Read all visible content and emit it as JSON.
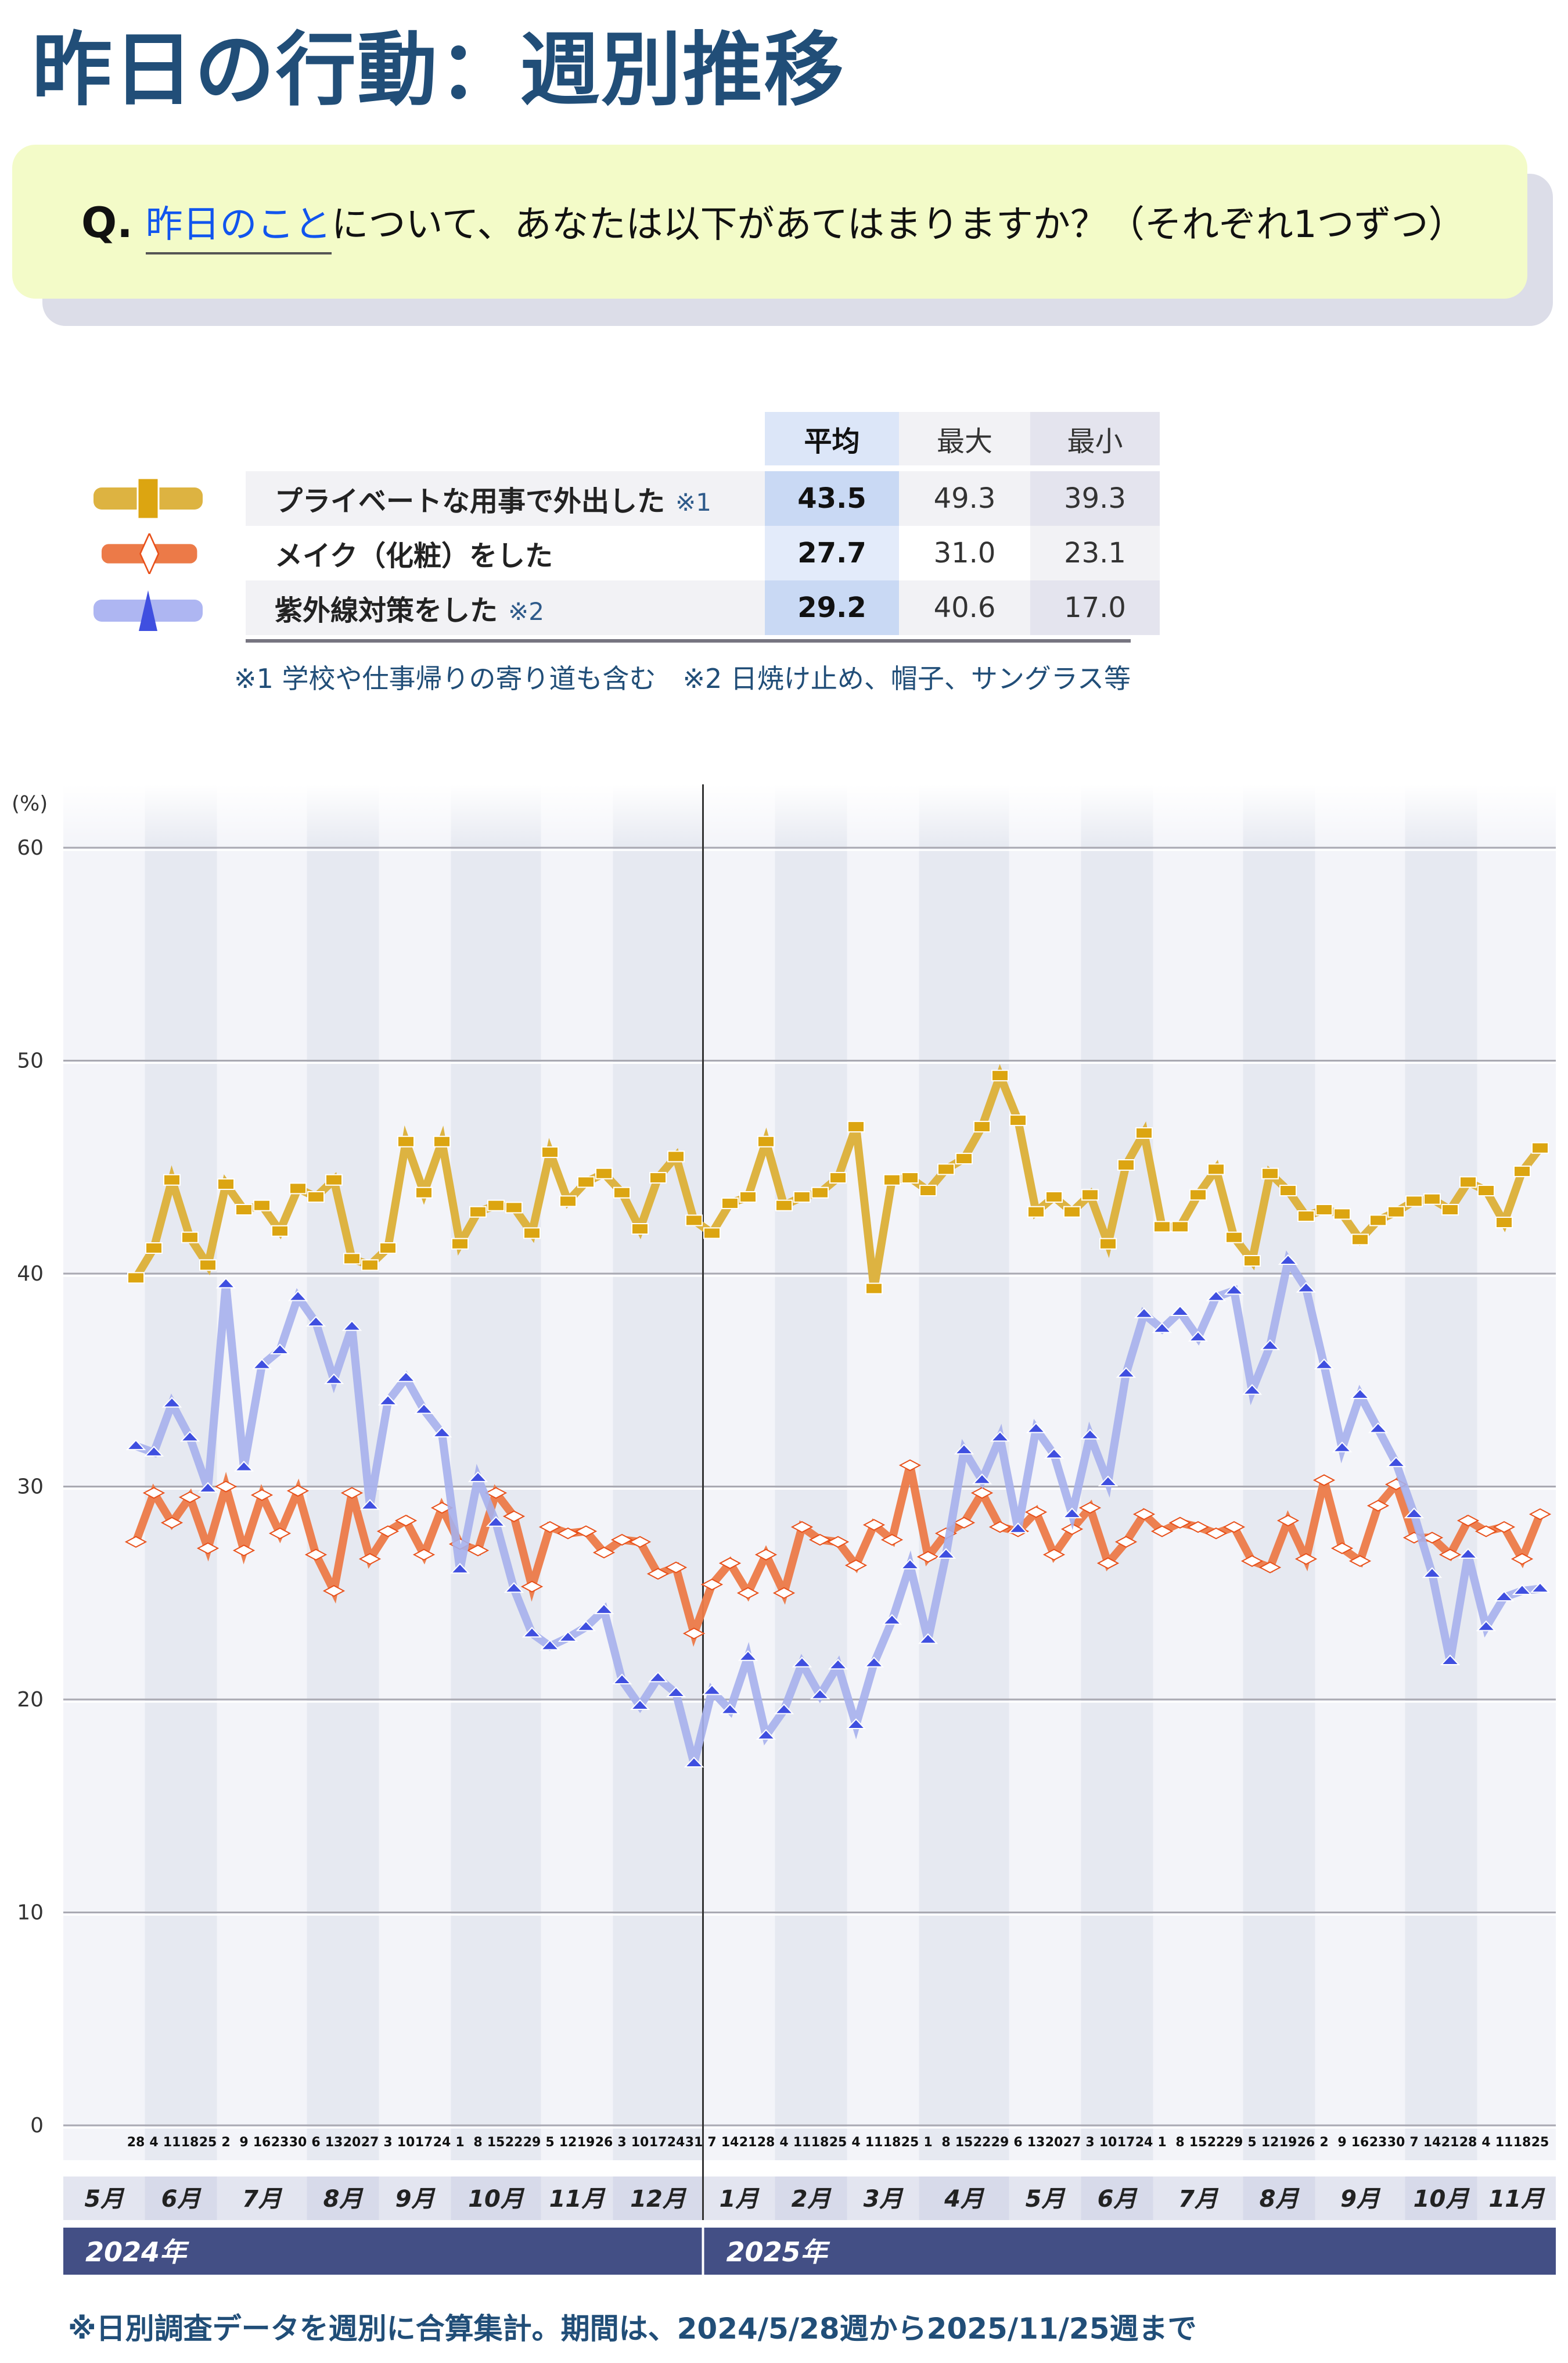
{
  "title": "昨日の行動：週別推移",
  "question": {
    "mark": "Q.",
    "highlight": "昨日のこと",
    "text": "について、あなたは以下があてはまりますか？（それぞれ1つずつ）"
  },
  "summary_table": {
    "headers": {
      "avg": "平均",
      "max": "最大",
      "min": "最小"
    },
    "rows": [
      {
        "label": "プライベートな用事で外出した",
        "note": "※1",
        "avg": "43.5",
        "max": "49.3",
        "min": "39.3"
      },
      {
        "label": "メイク（化粧）をした",
        "note": "",
        "avg": "27.7",
        "max": "31.0",
        "min": "23.1"
      },
      {
        "label": "紫外線対策をした",
        "note": "※2",
        "avg": "29.2",
        "max": "40.6",
        "min": "17.0"
      }
    ]
  },
  "notes": "※1 学校や仕事帰りの寄り道も含む　※2 日焼け止め、帽子、サングラス等",
  "footer": "※日別調査データを週別に合算集計。期間は、2024/5/28週から2025/11/25週まで",
  "colors": {
    "private_line": "#ddb341",
    "private_marker": "#dca511",
    "makeup_line": "#ec7a48",
    "makeup_marker": "#e8501a",
    "uv_line": "#a6b0ec",
    "uv_marker": "#3f4fe0",
    "year_bar": "#434f85",
    "title": "#214e78"
  },
  "chart_data": {
    "type": "line",
    "ylabel": "(%)",
    "ylim": [
      0,
      60
    ],
    "yticks": [
      "0",
      "10",
      "20",
      "30",
      "40",
      "50",
      "60"
    ],
    "grid": true,
    "x": [
      "28",
      "4",
      "11",
      "18",
      "25",
      "2",
      "9",
      "16",
      "23",
      "30",
      "6",
      "13",
      "20",
      "27",
      "3",
      "10",
      "17",
      "24",
      "1",
      "8",
      "15",
      "22",
      "29",
      "5",
      "12",
      "19",
      "26",
      "3",
      "10",
      "17",
      "24",
      "31",
      "7",
      "14",
      "21",
      "28",
      "4",
      "11",
      "18",
      "25",
      "4",
      "11",
      "18",
      "25",
      "1",
      "8",
      "15",
      "22",
      "29",
      "6",
      "13",
      "20",
      "27",
      "3",
      "10",
      "17",
      "24",
      "1",
      "8",
      "15",
      "22",
      "29",
      "5",
      "12",
      "19",
      "26",
      "2",
      "9",
      "16",
      "23",
      "30",
      "7",
      "14",
      "21",
      "28",
      "4",
      "11",
      "18",
      "25"
    ],
    "months": [
      "5月",
      "6月",
      "7月",
      "8月",
      "9月",
      "10月",
      "11月",
      "12月",
      "1月",
      "2月",
      "3月",
      "4月",
      "5月",
      "6月",
      "7月",
      "8月",
      "9月",
      "10月",
      "11月"
    ],
    "years": [
      "2024年",
      "2025年"
    ],
    "series": [
      {
        "name": "プライベートな用事で外出した",
        "marker": "square",
        "values": [
          39.8,
          41.2,
          44.4,
          41.7,
          40.4,
          44.2,
          43.0,
          43.2,
          42.0,
          44.0,
          43.6,
          44.4,
          40.7,
          40.4,
          41.2,
          46.2,
          43.8,
          46.2,
          41.4,
          42.9,
          43.2,
          43.1,
          41.9,
          45.7,
          43.4,
          44.3,
          44.7,
          43.8,
          42.1,
          44.5,
          45.5,
          42.5,
          41.9,
          43.3,
          43.6,
          46.2,
          43.2,
          43.6,
          43.8,
          44.5,
          46.9,
          39.3,
          44.4,
          44.5,
          43.9,
          44.9,
          45.4,
          46.9,
          49.3,
          47.2,
          42.9,
          43.6,
          42.9,
          43.7,
          41.4,
          45.1,
          46.6,
          42.2,
          42.2,
          43.7,
          44.9,
          41.7,
          40.6,
          44.7,
          43.9,
          42.7,
          43.0,
          42.8,
          41.6,
          42.5,
          42.9,
          43.4,
          43.5,
          43.0,
          44.3,
          43.9,
          42.4,
          44.8,
          45.9
        ]
      },
      {
        "name": "メイク（化粧）をした",
        "marker": "diamond",
        "values": [
          27.4,
          29.7,
          28.3,
          29.5,
          27.1,
          30.0,
          27.0,
          29.6,
          27.8,
          29.8,
          26.8,
          25.1,
          29.7,
          26.6,
          27.9,
          28.4,
          26.8,
          29.0,
          27.3,
          27.0,
          29.7,
          28.6,
          25.3,
          28.1,
          27.8,
          27.9,
          26.9,
          27.5,
          27.4,
          25.9,
          26.2,
          23.1,
          25.4,
          26.4,
          25.0,
          26.8,
          25.0,
          28.1,
          27.5,
          27.4,
          26.3,
          28.2,
          27.5,
          31.0,
          26.7,
          27.8,
          28.3,
          29.7,
          28.1,
          27.9,
          28.8,
          26.8,
          28.0,
          29.0,
          26.4,
          27.4,
          28.7,
          27.9,
          28.3,
          28.1,
          27.8,
          28.1,
          26.5,
          26.2,
          28.4,
          26.6,
          30.3,
          27.1,
          26.5,
          29.1,
          30.1,
          27.6,
          27.6,
          26.8,
          28.4,
          27.9,
          28.1,
          26.6,
          28.7
        ]
      },
      {
        "name": "紫外線対策をした",
        "marker": "triangle",
        "values": [
          31.9,
          31.6,
          33.9,
          32.3,
          29.9,
          39.5,
          30.9,
          35.7,
          36.4,
          38.9,
          37.7,
          35.0,
          37.5,
          29.1,
          34.0,
          35.1,
          33.6,
          32.5,
          26.1,
          30.4,
          28.3,
          25.2,
          23.1,
          22.5,
          22.9,
          23.4,
          24.2,
          20.9,
          19.7,
          21.0,
          20.3,
          17.0,
          20.4,
          19.5,
          22.0,
          18.3,
          19.5,
          21.7,
          20.2,
          21.6,
          18.8,
          21.7,
          23.7,
          26.3,
          22.8,
          26.8,
          31.7,
          30.3,
          32.3,
          28.0,
          32.7,
          31.5,
          28.7,
          32.4,
          30.2,
          35.3,
          38.1,
          37.4,
          38.2,
          37.0,
          38.9,
          39.2,
          34.5,
          36.6,
          40.6,
          39.3,
          35.7,
          31.8,
          34.3,
          32.7,
          31.1,
          28.7,
          25.9,
          21.8,
          26.8,
          23.4,
          24.8,
          25.1,
          25.2
        ]
      }
    ]
  }
}
